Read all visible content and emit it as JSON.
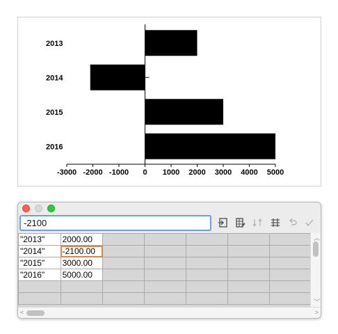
{
  "chart_data": {
    "type": "bar",
    "orientation": "horizontal",
    "categories": [
      "2013",
      "2014",
      "2015",
      "2016"
    ],
    "values": [
      2000,
      -2100,
      3000,
      5000
    ],
    "xlim": [
      -3000,
      5000
    ],
    "xticks": [
      "-3000",
      "-2000",
      "-1000",
      "0",
      "1000",
      "2000",
      "3000",
      "4000",
      "5000"
    ],
    "grid": false,
    "bar_color": "#000000"
  },
  "sheet": {
    "input_value": "-2100",
    "rows": [
      [
        "\"2013\"",
        "2000.00"
      ],
      [
        "\"2014\"",
        "-2100.00"
      ],
      [
        "\"2015\"",
        "3000.00"
      ],
      [
        "\"2016\"",
        "5000.00"
      ]
    ],
    "active_cell": [
      1,
      1
    ],
    "toolbar": [
      "import-data-icon",
      "edit-table-icon",
      "switch-rows-columns-icon",
      "adjust-columns-icon",
      "undo-icon",
      "apply-icon"
    ]
  }
}
